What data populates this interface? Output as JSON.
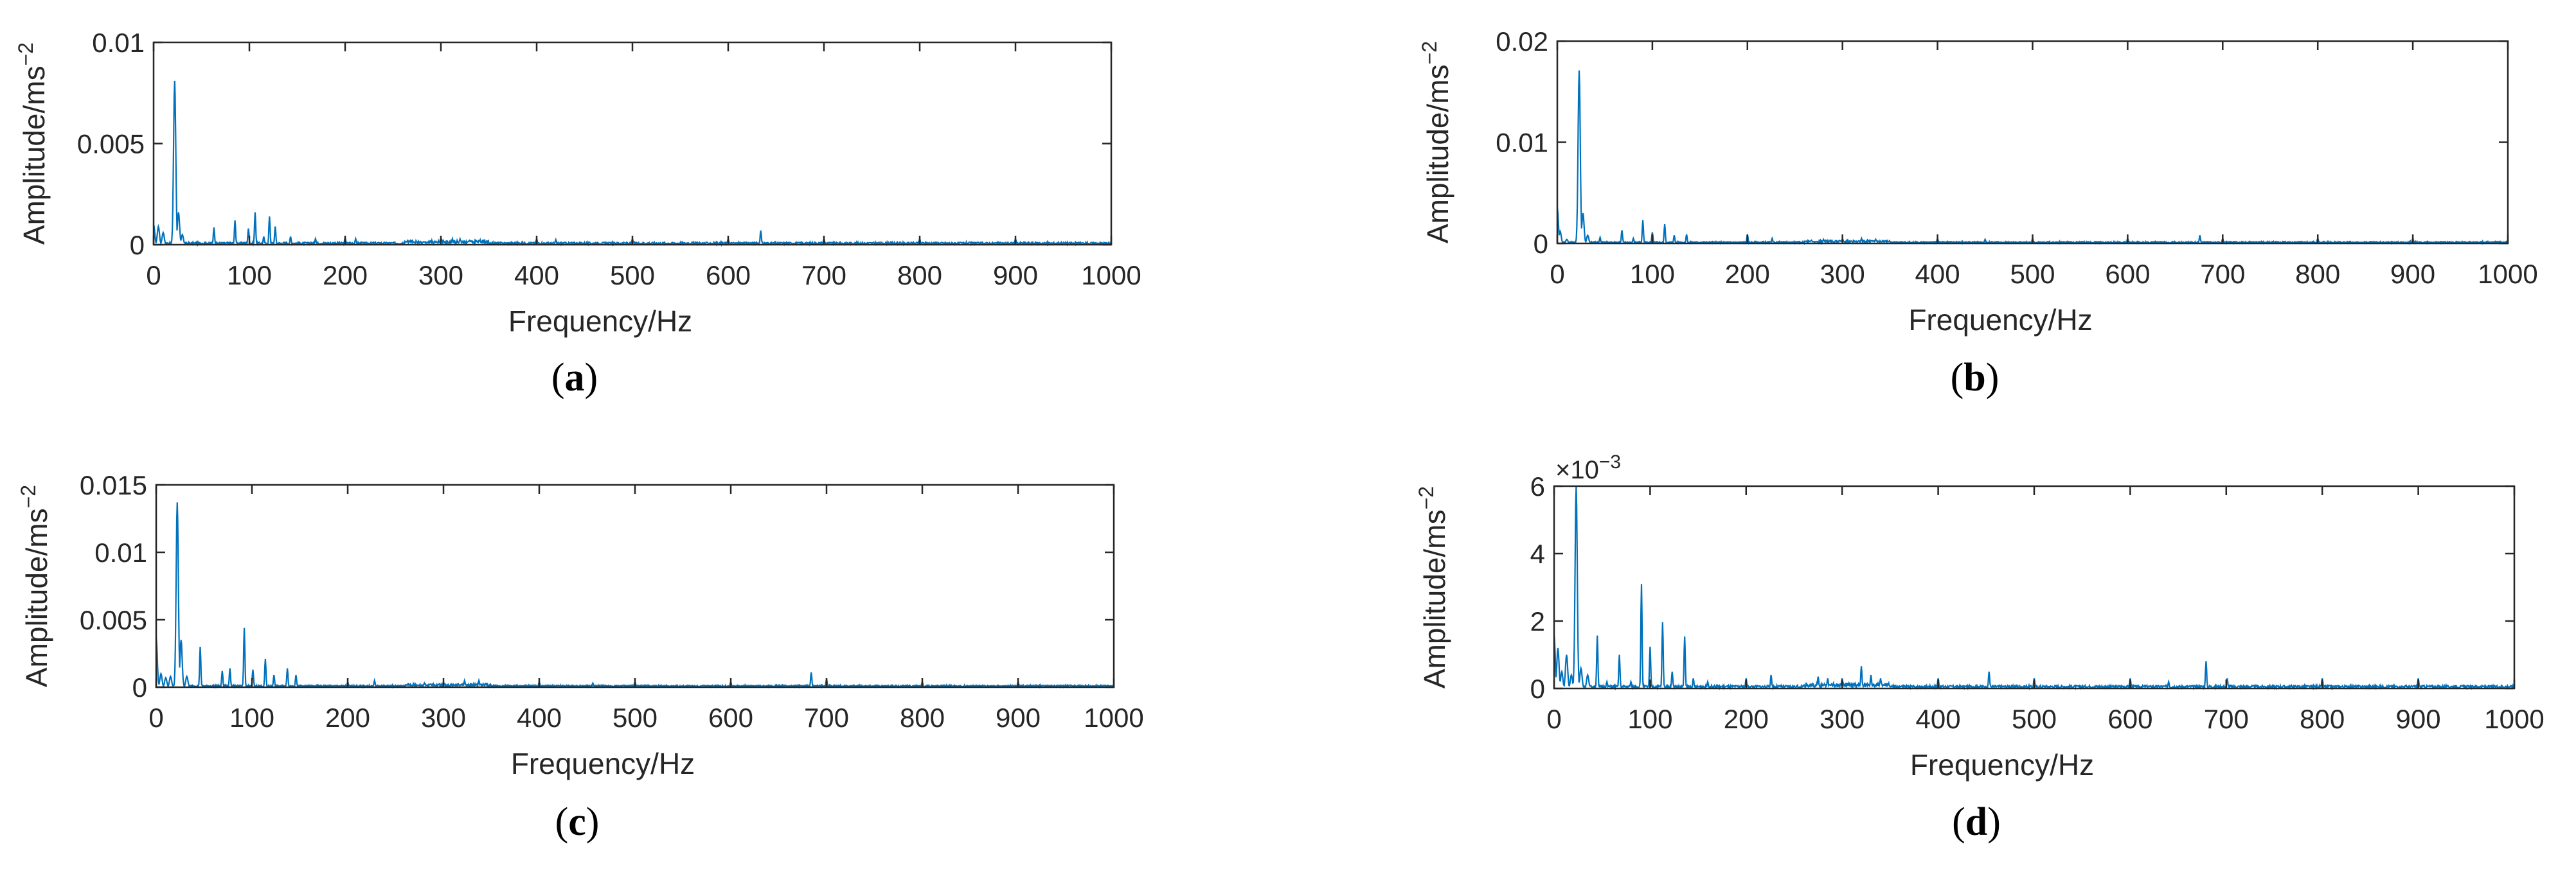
{
  "figure": {
    "background": "#ffffff",
    "axis_color": "#262626",
    "line_color": "#0072bd"
  },
  "chart_data": [
    {
      "id": "a",
      "type": "line",
      "panel_label": "a",
      "title": "",
      "xlabel": "Frequency/Hz",
      "ylabel": "Amplitude/ms",
      "ylabel_superscript": "−2",
      "xlim": [
        0,
        1000
      ],
      "ylim": [
        0,
        0.01
      ],
      "xticks": [
        0,
        100,
        200,
        300,
        400,
        500,
        600,
        700,
        800,
        900,
        1000
      ],
      "xtick_labels": [
        "0",
        "100",
        "200",
        "300",
        "400",
        "500",
        "600",
        "700",
        "800",
        "900",
        "1000"
      ],
      "yticks": [
        0,
        0.005,
        0.01
      ],
      "ytick_labels": [
        "0",
        "0.005",
        "0.01"
      ],
      "y_exponent_label": "",
      "grid": false,
      "legend": null,
      "baseline_noise": 8e-05,
      "peaks": [
        {
          "x": 0,
          "y": 0.001
        },
        {
          "x": 5,
          "y": 0.0009
        },
        {
          "x": 10,
          "y": 0.0006
        },
        {
          "x": 22,
          "y": 0.0081
        },
        {
          "x": 26,
          "y": 0.0016
        },
        {
          "x": 30,
          "y": 0.0005
        },
        {
          "x": 63,
          "y": 0.00085
        },
        {
          "x": 85,
          "y": 0.0012
        },
        {
          "x": 99,
          "y": 0.0008
        },
        {
          "x": 106,
          "y": 0.0016
        },
        {
          "x": 115,
          "y": 0.0004
        },
        {
          "x": 121,
          "y": 0.0014
        },
        {
          "x": 127,
          "y": 0.0009
        },
        {
          "x": 143,
          "y": 0.0004
        },
        {
          "x": 169,
          "y": 0.0003
        },
        {
          "x": 200,
          "y": 0.00035
        },
        {
          "x": 211,
          "y": 0.0003
        },
        {
          "x": 265,
          "y": 0.0002
        },
        {
          "x": 300,
          "y": 0.00035
        },
        {
          "x": 312,
          "y": 0.0003
        },
        {
          "x": 320,
          "y": 0.00028
        },
        {
          "x": 330,
          "y": 0.00022
        },
        {
          "x": 400,
          "y": 0.0003
        },
        {
          "x": 420,
          "y": 0.00025
        },
        {
          "x": 500,
          "y": 0.0003
        },
        {
          "x": 600,
          "y": 0.0003
        },
        {
          "x": 634,
          "y": 0.0007
        },
        {
          "x": 700,
          "y": 0.0003
        },
        {
          "x": 800,
          "y": 0.0003
        },
        {
          "x": 900,
          "y": 0.0003
        }
      ]
    },
    {
      "id": "b",
      "type": "line",
      "panel_label": "b",
      "title": "",
      "xlabel": "Frequency/Hz",
      "ylabel": "Amplitude/ms",
      "ylabel_superscript": "−2",
      "xlim": [
        0,
        1000
      ],
      "ylim": [
        0,
        0.02
      ],
      "xticks": [
        0,
        100,
        200,
        300,
        400,
        500,
        600,
        700,
        800,
        900,
        1000
      ],
      "xtick_labels": [
        "0",
        "100",
        "200",
        "300",
        "400",
        "500",
        "600",
        "700",
        "800",
        "900",
        "1000"
      ],
      "yticks": [
        0,
        0.01,
        0.02
      ],
      "ytick_labels": [
        "0",
        "0.01",
        "0.02"
      ],
      "y_exponent_label": "",
      "grid": false,
      "legend": null,
      "baseline_noise": 0.00012,
      "peaks": [
        {
          "x": 0,
          "y": 0.0035
        },
        {
          "x": 3,
          "y": 0.0012
        },
        {
          "x": 10,
          "y": 0.0004
        },
        {
          "x": 23,
          "y": 0.0171
        },
        {
          "x": 27,
          "y": 0.003
        },
        {
          "x": 32,
          "y": 0.0008
        },
        {
          "x": 45,
          "y": 0.0006
        },
        {
          "x": 68,
          "y": 0.0013
        },
        {
          "x": 80,
          "y": 0.0005
        },
        {
          "x": 90,
          "y": 0.0023
        },
        {
          "x": 100,
          "y": 0.0011
        },
        {
          "x": 113,
          "y": 0.0019
        },
        {
          "x": 123,
          "y": 0.0008
        },
        {
          "x": 136,
          "y": 0.0009
        },
        {
          "x": 200,
          "y": 0.0009
        },
        {
          "x": 226,
          "y": 0.0005
        },
        {
          "x": 280,
          "y": 0.0004
        },
        {
          "x": 300,
          "y": 0.0005
        },
        {
          "x": 320,
          "y": 0.0005
        },
        {
          "x": 335,
          "y": 0.0004
        },
        {
          "x": 400,
          "y": 0.0005
        },
        {
          "x": 450,
          "y": 0.0004
        },
        {
          "x": 500,
          "y": 0.0005
        },
        {
          "x": 600,
          "y": 0.0005
        },
        {
          "x": 676,
          "y": 0.0008
        },
        {
          "x": 700,
          "y": 0.0005
        },
        {
          "x": 800,
          "y": 0.0005
        },
        {
          "x": 900,
          "y": 0.0005
        }
      ]
    },
    {
      "id": "c",
      "type": "line",
      "panel_label": "c",
      "title": "",
      "xlabel": "Frequency/Hz",
      "ylabel": "Amplitude/ms",
      "ylabel_superscript": "−2",
      "xlim": [
        0,
        1000
      ],
      "ylim": [
        0,
        0.015
      ],
      "xticks": [
        0,
        100,
        200,
        300,
        400,
        500,
        600,
        700,
        800,
        900,
        1000
      ],
      "xtick_labels": [
        "0",
        "100",
        "200",
        "300",
        "400",
        "500",
        "600",
        "700",
        "800",
        "900",
        "1000"
      ],
      "yticks": [
        0,
        0.005,
        0.01,
        0.015
      ],
      "ytick_labels": [
        "0",
        "0.005",
        "0.01",
        "0.015"
      ],
      "y_exponent_label": "",
      "grid": false,
      "legend": null,
      "baseline_noise": 0.0001,
      "peaks": [
        {
          "x": 0,
          "y": 0.0037
        },
        {
          "x": 5,
          "y": 0.001
        },
        {
          "x": 10,
          "y": 0.0007
        },
        {
          "x": 15,
          "y": 0.0008
        },
        {
          "x": 22,
          "y": 0.0137
        },
        {
          "x": 26,
          "y": 0.0035
        },
        {
          "x": 32,
          "y": 0.0008
        },
        {
          "x": 46,
          "y": 0.003
        },
        {
          "x": 69,
          "y": 0.0012
        },
        {
          "x": 77,
          "y": 0.0014
        },
        {
          "x": 92,
          "y": 0.0044
        },
        {
          "x": 101,
          "y": 0.0013
        },
        {
          "x": 114,
          "y": 0.0021
        },
        {
          "x": 123,
          "y": 0.0009
        },
        {
          "x": 137,
          "y": 0.0014
        },
        {
          "x": 146,
          "y": 0.0009
        },
        {
          "x": 200,
          "y": 0.0004
        },
        {
          "x": 228,
          "y": 0.0005
        },
        {
          "x": 280,
          "y": 0.0003
        },
        {
          "x": 300,
          "y": 0.0004
        },
        {
          "x": 322,
          "y": 0.0005
        },
        {
          "x": 337,
          "y": 0.0005
        },
        {
          "x": 400,
          "y": 0.0004
        },
        {
          "x": 456,
          "y": 0.0003
        },
        {
          "x": 500,
          "y": 0.0004
        },
        {
          "x": 600,
          "y": 0.0004
        },
        {
          "x": 684,
          "y": 0.0011
        },
        {
          "x": 700,
          "y": 0.0006
        },
        {
          "x": 800,
          "y": 0.0004
        },
        {
          "x": 900,
          "y": 0.0004
        }
      ]
    },
    {
      "id": "d",
      "type": "line",
      "panel_label": "d",
      "title": "",
      "xlabel": "Frequency/Hz",
      "ylabel": "Amplitude/ms",
      "ylabel_superscript": "−2",
      "xlim": [
        0,
        1000
      ],
      "ylim": [
        0,
        0.006
      ],
      "xticks": [
        0,
        100,
        200,
        300,
        400,
        500,
        600,
        700,
        800,
        900,
        1000
      ],
      "xtick_labels": [
        "0",
        "100",
        "200",
        "300",
        "400",
        "500",
        "600",
        "700",
        "800",
        "900",
        "1000"
      ],
      "yticks": [
        0,
        0.002,
        0.004,
        0.006
      ],
      "ytick_labels": [
        "0",
        "2",
        "4",
        "6"
      ],
      "y_exponent_label": "×10",
      "y_exponent_power": "−3",
      "grid": false,
      "legend": null,
      "baseline_noise": 6e-05,
      "peaks": [
        {
          "x": 0,
          "y": 0.0016
        },
        {
          "x": 4,
          "y": 0.0012
        },
        {
          "x": 8,
          "y": 0.0005
        },
        {
          "x": 13,
          "y": 0.001
        },
        {
          "x": 18,
          "y": 0.0004
        },
        {
          "x": 23,
          "y": 0.006
        },
        {
          "x": 28,
          "y": 0.0006
        },
        {
          "x": 35,
          "y": 0.0004
        },
        {
          "x": 45,
          "y": 0.00157
        },
        {
          "x": 55,
          "y": 0.0002
        },
        {
          "x": 68,
          "y": 0.001
        },
        {
          "x": 80,
          "y": 0.0002
        },
        {
          "x": 91,
          "y": 0.0031
        },
        {
          "x": 100,
          "y": 0.00124
        },
        {
          "x": 113,
          "y": 0.00197
        },
        {
          "x": 123,
          "y": 0.0005
        },
        {
          "x": 136,
          "y": 0.00154
        },
        {
          "x": 145,
          "y": 0.0003
        },
        {
          "x": 160,
          "y": 0.0002
        },
        {
          "x": 200,
          "y": 0.0003
        },
        {
          "x": 226,
          "y": 0.0004
        },
        {
          "x": 275,
          "y": 0.00035
        },
        {
          "x": 285,
          "y": 0.0003
        },
        {
          "x": 300,
          "y": 0.0003
        },
        {
          "x": 320,
          "y": 0.00066
        },
        {
          "x": 330,
          "y": 0.0004
        },
        {
          "x": 340,
          "y": 0.0003
        },
        {
          "x": 400,
          "y": 0.0003
        },
        {
          "x": 453,
          "y": 0.0005
        },
        {
          "x": 500,
          "y": 0.0003
        },
        {
          "x": 600,
          "y": 0.0003
        },
        {
          "x": 640,
          "y": 0.0002
        },
        {
          "x": 679,
          "y": 0.00081
        },
        {
          "x": 701,
          "y": 0.0003
        },
        {
          "x": 800,
          "y": 0.0003
        },
        {
          "x": 900,
          "y": 0.0003
        }
      ]
    }
  ]
}
